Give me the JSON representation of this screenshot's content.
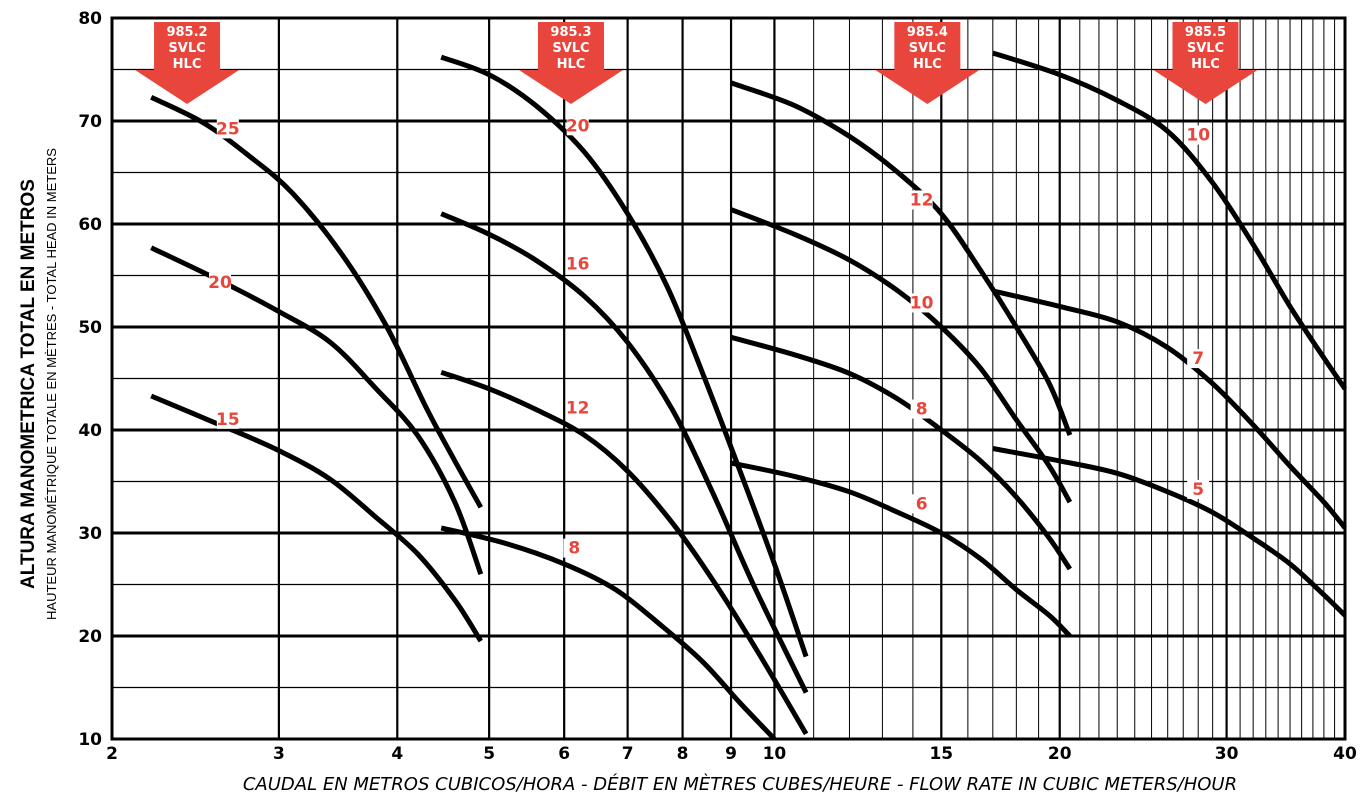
{
  "chart_data": {
    "type": "line",
    "title": "",
    "xlabel": "CAUDAL EN METROS CUBICOS/HORA - DÉBIT EN MÈTRES CUBES/HEURE - FLOW RATE IN CUBIC METERS/HOUR",
    "ylabel": "ALTURA MANOMETRICA TOTAL EN METROS",
    "ylabel_secondary": "HAUTEUR MANOMÉTRIQUE TOTALE EN MÈTRES - TOTAL HEAD IN METERS",
    "x_scale": "log",
    "xlim": [
      2,
      40
    ],
    "ylim": [
      10,
      80
    ],
    "x_ticks": [
      2,
      3,
      4,
      5,
      6,
      7,
      8,
      9,
      10,
      15,
      20,
      30,
      40
    ],
    "x_tick_labels": [
      "2",
      "3",
      "4",
      "5",
      "6",
      "7",
      "8",
      "9",
      "10",
      "15",
      "20",
      "30",
      "40"
    ],
    "y_ticks": [
      10,
      20,
      30,
      40,
      50,
      60,
      70,
      80
    ],
    "y_tick_labels": [
      "10",
      "20",
      "30",
      "40",
      "50",
      "60",
      "70",
      "80"
    ],
    "grid": true,
    "legend": "none",
    "colors": {
      "curve": "#000000",
      "label": "#e8463c",
      "marker": "#e8463c",
      "marker_text": "#ffffff"
    },
    "models": [
      {
        "lines": [
          "985.2",
          "SVLC",
          "HLC"
        ],
        "x": 2.4
      },
      {
        "lines": [
          "985.3",
          "SVLC",
          "HLC"
        ],
        "x": 6.1
      },
      {
        "lines": [
          "985.4",
          "SVLC",
          "HLC"
        ],
        "x": 14.5
      },
      {
        "lines": [
          "985.5",
          "SVLC",
          "HLC"
        ],
        "x": 28.5
      }
    ],
    "series": [
      {
        "name": "25",
        "model": "985.2",
        "label_at": [
          2.65,
          68.7
        ],
        "points": [
          [
            2.2,
            72.3
          ],
          [
            2.5,
            69.8
          ],
          [
            2.8,
            66.5
          ],
          [
            3.1,
            63.0
          ],
          [
            3.5,
            57.0
          ],
          [
            3.9,
            50.0
          ],
          [
            4.3,
            42.0
          ],
          [
            4.6,
            37.0
          ],
          [
            4.9,
            32.5
          ]
        ]
      },
      {
        "name": "20",
        "model": "985.2",
        "label_at": [
          2.6,
          53.8
        ],
        "points": [
          [
            2.2,
            57.7
          ],
          [
            2.6,
            54.5
          ],
          [
            3.0,
            51.5
          ],
          [
            3.4,
            48.5
          ],
          [
            3.8,
            44.0
          ],
          [
            4.2,
            39.5
          ],
          [
            4.6,
            33.0
          ],
          [
            4.9,
            26.0
          ]
        ]
      },
      {
        "name": "15",
        "model": "985.2",
        "label_at": [
          2.65,
          40.5
        ],
        "points": [
          [
            2.2,
            43.3
          ],
          [
            2.6,
            40.5
          ],
          [
            3.0,
            38.0
          ],
          [
            3.4,
            35.2
          ],
          [
            3.8,
            31.5
          ],
          [
            4.2,
            28.0
          ],
          [
            4.6,
            23.5
          ],
          [
            4.9,
            19.5
          ]
        ]
      },
      {
        "name": "20",
        "model": "985.3",
        "label_at": [
          6.2,
          69.0
        ],
        "points": [
          [
            4.45,
            76.2
          ],
          [
            5.0,
            74.5
          ],
          [
            5.6,
            71.5
          ],
          [
            6.3,
            67.0
          ],
          [
            7.0,
            61.0
          ],
          [
            7.7,
            54.0
          ],
          [
            8.4,
            45.5
          ],
          [
            9.2,
            36.0
          ],
          [
            10.0,
            27.0
          ],
          [
            10.8,
            18.0
          ]
        ]
      },
      {
        "name": "16",
        "model": "985.3",
        "label_at": [
          6.2,
          55.6
        ],
        "points": [
          [
            4.45,
            61.0
          ],
          [
            5.0,
            59.0
          ],
          [
            5.6,
            56.5
          ],
          [
            6.3,
            53.0
          ],
          [
            7.0,
            48.5
          ],
          [
            7.8,
            42.0
          ],
          [
            8.6,
            34.0
          ],
          [
            9.5,
            25.0
          ],
          [
            10.8,
            14.5
          ]
        ]
      },
      {
        "name": "12",
        "model": "985.3",
        "label_at": [
          6.2,
          41.6
        ],
        "points": [
          [
            4.45,
            45.6
          ],
          [
            5.0,
            44.0
          ],
          [
            5.6,
            42.0
          ],
          [
            6.3,
            39.5
          ],
          [
            7.0,
            36.0
          ],
          [
            7.8,
            31.0
          ],
          [
            8.6,
            25.5
          ],
          [
            9.6,
            18.5
          ],
          [
            10.8,
            10.5
          ]
        ]
      },
      {
        "name": "8",
        "model": "985.3",
        "label_at": [
          6.15,
          28.0
        ],
        "points": [
          [
            4.45,
            30.5
          ],
          [
            5.2,
            29.0
          ],
          [
            6.0,
            27.0
          ],
          [
            6.8,
            24.5
          ],
          [
            7.6,
            21.0
          ],
          [
            8.4,
            17.5
          ],
          [
            9.2,
            13.5
          ],
          [
            10.0,
            10.0
          ]
        ]
      },
      {
        "name": "12",
        "model": "985.4",
        "label_at": [
          14.3,
          61.8
        ],
        "points": [
          [
            9.0,
            73.7
          ],
          [
            10.5,
            71.5
          ],
          [
            12.0,
            68.5
          ],
          [
            13.5,
            65.0
          ],
          [
            15.0,
            61.0
          ],
          [
            16.5,
            55.5
          ],
          [
            18.0,
            50.0
          ],
          [
            19.5,
            44.5
          ],
          [
            20.5,
            39.5
          ]
        ]
      },
      {
        "name": "10",
        "model": "985.4",
        "label_at": [
          14.3,
          51.8
        ],
        "points": [
          [
            9.0,
            61.4
          ],
          [
            10.5,
            59.0
          ],
          [
            12.0,
            56.5
          ],
          [
            13.5,
            53.5
          ],
          [
            15.0,
            50.0
          ],
          [
            16.5,
            46.0
          ],
          [
            18.0,
            41.0
          ],
          [
            19.5,
            36.5
          ],
          [
            20.5,
            33.0
          ]
        ]
      },
      {
        "name": "8",
        "model": "985.4",
        "label_at": [
          14.3,
          41.5
        ],
        "points": [
          [
            9.0,
            49.0
          ],
          [
            10.5,
            47.3
          ],
          [
            12.0,
            45.5
          ],
          [
            13.5,
            43.0
          ],
          [
            15.0,
            40.0
          ],
          [
            16.5,
            37.0
          ],
          [
            18.0,
            33.5
          ],
          [
            19.5,
            29.5
          ],
          [
            20.5,
            26.5
          ]
        ]
      },
      {
        "name": "6",
        "model": "985.4",
        "label_at": [
          14.3,
          32.3
        ],
        "points": [
          [
            9.0,
            36.8
          ],
          [
            10.5,
            35.5
          ],
          [
            12.0,
            34.0
          ],
          [
            13.5,
            32.0
          ],
          [
            15.0,
            30.0
          ],
          [
            16.5,
            27.5
          ],
          [
            18.0,
            24.5
          ],
          [
            19.5,
            22.0
          ],
          [
            20.5,
            20.0
          ]
        ]
      },
      {
        "name": "10",
        "model": "985.5",
        "label_at": [
          28.0,
          68.1
        ],
        "points": [
          [
            17.0,
            76.6
          ],
          [
            20.0,
            74.5
          ],
          [
            23.0,
            72.0
          ],
          [
            26.0,
            69.0
          ],
          [
            29.0,
            64.0
          ],
          [
            32.0,
            58.0
          ],
          [
            35.0,
            52.0
          ],
          [
            38.0,
            47.0
          ],
          [
            40.0,
            44.0
          ]
        ]
      },
      {
        "name": "7",
        "model": "985.5",
        "label_at": [
          28.0,
          46.4
        ],
        "points": [
          [
            17.0,
            53.5
          ],
          [
            20.0,
            52.0
          ],
          [
            23.0,
            50.5
          ],
          [
            26.0,
            48.0
          ],
          [
            29.0,
            44.5
          ],
          [
            32.0,
            40.5
          ],
          [
            35.0,
            36.5
          ],
          [
            38.0,
            33.0
          ],
          [
            40.0,
            30.5
          ]
        ]
      },
      {
        "name": "5",
        "model": "985.5",
        "label_at": [
          28.0,
          33.7
        ],
        "points": [
          [
            17.0,
            38.2
          ],
          [
            20.0,
            37.0
          ],
          [
            23.0,
            35.8
          ],
          [
            26.0,
            34.0
          ],
          [
            29.0,
            32.0
          ],
          [
            32.0,
            29.5
          ],
          [
            35.0,
            27.0
          ],
          [
            38.0,
            24.0
          ],
          [
            40.0,
            22.0
          ]
        ]
      }
    ]
  }
}
